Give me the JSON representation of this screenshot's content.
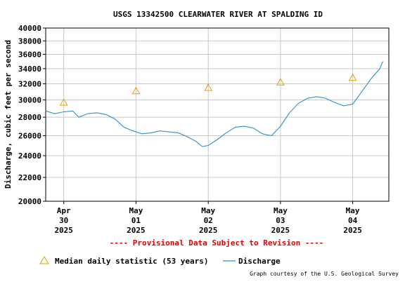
{
  "title": "USGS 13342500 CLEARWATER RIVER AT SPALDING ID",
  "provisional_notice": "---- Provisional Data Subject to Revision ----",
  "credit": "Graph courtesy of the U.S. Geological Survey",
  "legend": {
    "median_label": "Median daily statistic (53 years)",
    "discharge_label": "Discharge"
  },
  "colors": {
    "discharge": "#2f8fc4",
    "median_marker": "#e0a000",
    "provisional": "#e00000",
    "grid": "#c8c8c8"
  },
  "chart_data": {
    "type": "line",
    "title": "USGS 13342500 CLEARWATER RIVER AT SPALDING ID",
    "ylabel": "Discharge, cubic feet per second",
    "xlabel": "",
    "y_scale": "log",
    "ylim": [
      20000,
      40000
    ],
    "y_ticks": [
      20000,
      22000,
      24000,
      26000,
      28000,
      30000,
      32000,
      34000,
      36000,
      38000,
      40000
    ],
    "x_range": [
      "2025-04-29T18:00",
      "2025-05-04T12:00"
    ],
    "x_ticks": [
      {
        "date": "2025-04-30T00:00",
        "lines": [
          "Apr",
          "30",
          "2025"
        ]
      },
      {
        "date": "2025-05-01T00:00",
        "lines": [
          "May",
          "01",
          "2025"
        ]
      },
      {
        "date": "2025-05-02T00:00",
        "lines": [
          "May",
          "02",
          "2025"
        ]
      },
      {
        "date": "2025-05-03T00:00",
        "lines": [
          "May",
          "03",
          "2025"
        ]
      },
      {
        "date": "2025-05-04T00:00",
        "lines": [
          "May",
          "04",
          "2025"
        ]
      }
    ],
    "grid": true,
    "legend_position": "bottom",
    "series": [
      {
        "name": "Discharge",
        "style": "line",
        "points": [
          [
            "2025-04-29T18:00",
            28700
          ],
          [
            "2025-04-29T21:00",
            28400
          ],
          [
            "2025-04-30T00:00",
            28600
          ],
          [
            "2025-04-30T03:00",
            28700
          ],
          [
            "2025-04-30T05:00",
            28000
          ],
          [
            "2025-04-30T08:00",
            28400
          ],
          [
            "2025-04-30T11:00",
            28500
          ],
          [
            "2025-04-30T14:00",
            28300
          ],
          [
            "2025-04-30T17:00",
            27800
          ],
          [
            "2025-04-30T20:00",
            26900
          ],
          [
            "2025-04-30T23:00",
            26500
          ],
          [
            "2025-05-01T02:00",
            26200
          ],
          [
            "2025-05-01T05:00",
            26300
          ],
          [
            "2025-05-01T08:00",
            26500
          ],
          [
            "2025-05-01T11:00",
            26400
          ],
          [
            "2025-05-01T14:00",
            26300
          ],
          [
            "2025-05-01T17:00",
            25900
          ],
          [
            "2025-05-01T20:00",
            25400
          ],
          [
            "2025-05-01T22:00",
            24900
          ],
          [
            "2025-05-02T00:00",
            25000
          ],
          [
            "2025-05-02T03:00",
            25600
          ],
          [
            "2025-05-02T06:00",
            26300
          ],
          [
            "2025-05-02T09:00",
            26900
          ],
          [
            "2025-05-02T12:00",
            27000
          ],
          [
            "2025-05-02T15:00",
            26800
          ],
          [
            "2025-05-02T18:00",
            26200
          ],
          [
            "2025-05-02T21:00",
            26000
          ],
          [
            "2025-05-03T00:00",
            27000
          ],
          [
            "2025-05-03T03:00",
            28500
          ],
          [
            "2025-05-03T06:00",
            29600
          ],
          [
            "2025-05-03T09:00",
            30200
          ],
          [
            "2025-05-03T12:00",
            30400
          ],
          [
            "2025-05-03T15:00",
            30200
          ],
          [
            "2025-05-03T18:00",
            29700
          ],
          [
            "2025-05-03T21:00",
            29300
          ],
          [
            "2025-05-04T00:00",
            29500
          ],
          [
            "2025-05-04T03:00",
            31000
          ],
          [
            "2025-05-04T06:00",
            32600
          ],
          [
            "2025-05-04T09:00",
            34000
          ],
          [
            "2025-05-04T10:00",
            35000
          ]
        ]
      },
      {
        "name": "Median daily statistic (53 years)",
        "style": "triangle",
        "points": [
          [
            "2025-04-30T00:00",
            29700
          ],
          [
            "2025-05-01T00:00",
            31100
          ],
          [
            "2025-05-02T00:00",
            31500
          ],
          [
            "2025-05-03T00:00",
            32200
          ],
          [
            "2025-05-04T00:00",
            32800
          ]
        ]
      }
    ]
  }
}
